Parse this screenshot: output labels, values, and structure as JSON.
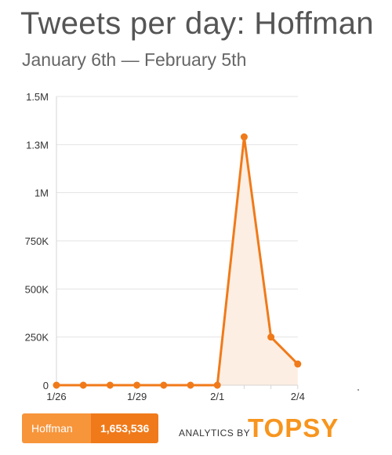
{
  "header": {
    "title": "Tweets per day: Hoffman",
    "subtitle": "January 6th — February 5th"
  },
  "chart_data": {
    "type": "area",
    "title": "Tweets per day: Hoffman",
    "subtitle": "January 6th — February 5th",
    "xlabel": "",
    "ylabel": "",
    "x_ticks": [
      "1/26",
      "1/29",
      "2/1",
      "2/4"
    ],
    "y_ticks": [
      {
        "value": 0,
        "label": "0"
      },
      {
        "value": 250000,
        "label": "250K"
      },
      {
        "value": 500000,
        "label": "500K"
      },
      {
        "value": 750000,
        "label": "750K"
      },
      {
        "value": 1000000,
        "label": "1M"
      },
      {
        "value": 1250000,
        "label": "1.3M"
      },
      {
        "value": 1500000,
        "label": "1.5M"
      }
    ],
    "ylim": [
      0,
      1500000
    ],
    "grid": true,
    "x": [
      "1/26",
      "1/27",
      "1/28",
      "1/29",
      "1/30",
      "1/31",
      "2/1",
      "2/2",
      "2/3",
      "2/4"
    ],
    "series": [
      {
        "values": [
          0,
          0,
          0,
          0,
          0,
          0,
          0,
          1290000,
          250000,
          110000
        ],
        "color": "#f07a1a",
        "fill": "#fdeee3"
      }
    ]
  },
  "footer": {
    "badge_name": "Hoffman",
    "badge_count": "1,653,536",
    "analytics_label": "ANALYTICS BY",
    "brand": "TOPSY",
    "colors": {
      "badge_name_bg": "#f7953b",
      "badge_count_bg": "#f07a1a",
      "brand": "#f7951e"
    }
  }
}
